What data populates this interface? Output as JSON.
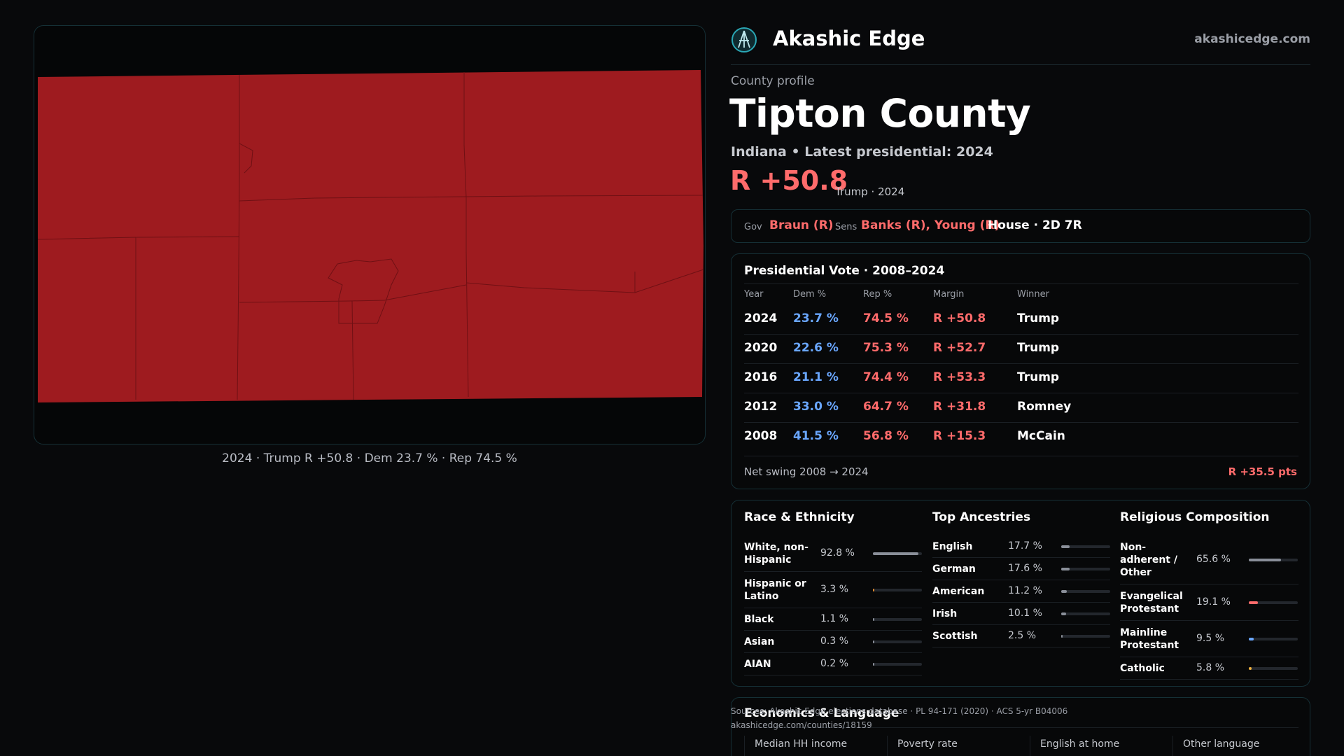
{
  "map": {
    "caption": "2024 · Trump R +50.8 · Dem 23.7 % · Rep 74.5 %",
    "fill_color": "#9e1b1f"
  },
  "header": {
    "brand": "Akashic Edge",
    "site": "akashicedge.com"
  },
  "profile": {
    "label": "County profile",
    "title": "Tipton County",
    "subline": "Indiana • Latest presidential: 2024",
    "margin": "R +50.8",
    "margin_note": "Trump · 2024"
  },
  "officials": {
    "gov_label": "Gov",
    "gov": "Braun (R)",
    "sens_label": "Sens",
    "sens": "Banks (R), Young (R)",
    "house": "House · 2D 7R"
  },
  "presidential": {
    "title": "Presidential Vote · 2008–2024",
    "headers": [
      "Year",
      "Dem %",
      "Rep %",
      "Margin",
      "Winner"
    ],
    "rows": [
      {
        "year": "2024",
        "dem": "23.7 %",
        "rep": "74.5 %",
        "margin": "R +50.8",
        "winner": "Trump"
      },
      {
        "year": "2020",
        "dem": "22.6 %",
        "rep": "75.3 %",
        "margin": "R +52.7",
        "winner": "Trump"
      },
      {
        "year": "2016",
        "dem": "21.1 %",
        "rep": "74.4 %",
        "margin": "R +53.3",
        "winner": "Trump"
      },
      {
        "year": "2012",
        "dem": "33.0 %",
        "rep": "64.7 %",
        "margin": "R +31.8",
        "winner": "Romney"
      },
      {
        "year": "2008",
        "dem": "41.5 %",
        "rep": "56.8 %",
        "margin": "R +15.3",
        "winner": "McCain"
      }
    ],
    "swing_label": "Net swing 2008 → 2024",
    "swing_value": "R +35.5 pts"
  },
  "race": {
    "title": "Race & Ethnicity",
    "items": [
      {
        "label": "White, non-Hispanic",
        "value": "92.8 %",
        "pct": 92.8,
        "color": "#8a8f99"
      },
      {
        "label": "Hispanic or Latino",
        "value": "3.3 %",
        "pct": 3.3,
        "color": "#e08a2e"
      },
      {
        "label": "Black",
        "value": "1.1 %",
        "pct": 1.1,
        "color": "#8a8f99"
      },
      {
        "label": "Asian",
        "value": "0.3 %",
        "pct": 0.3,
        "color": "#8a8f99"
      },
      {
        "label": "AIAN",
        "value": "0.2 %",
        "pct": 0.2,
        "color": "#8a8f99"
      }
    ]
  },
  "ancestry": {
    "title": "Top Ancestries",
    "items": [
      {
        "label": "English",
        "value": "17.7 %",
        "pct": 17.7,
        "color": "#8a8f99"
      },
      {
        "label": "German",
        "value": "17.6 %",
        "pct": 17.6,
        "color": "#8a8f99"
      },
      {
        "label": "American",
        "value": "11.2 %",
        "pct": 11.2,
        "color": "#8a8f99"
      },
      {
        "label": "Irish",
        "value": "10.1 %",
        "pct": 10.1,
        "color": "#8a8f99"
      },
      {
        "label": "Scottish",
        "value": "2.5 %",
        "pct": 2.5,
        "color": "#8a8f99"
      }
    ]
  },
  "religion": {
    "title": "Religious Composition",
    "items": [
      {
        "label": "Non-adherent / Other",
        "value": "65.6 %",
        "pct": 65.6,
        "color": "#8a8f99"
      },
      {
        "label": "Evangelical Protestant",
        "value": "19.1 %",
        "pct": 19.1,
        "color": "#ff6b6b"
      },
      {
        "label": "Mainline Protestant",
        "value": "9.5 %",
        "pct": 9.5,
        "color": "#6aa7ff"
      },
      {
        "label": "Catholic",
        "value": "5.8 %",
        "pct": 5.8,
        "color": "#f2b33d"
      }
    ]
  },
  "economics": {
    "title": "Economics & Language",
    "columns": [
      "Median HH income",
      "Poverty rate",
      "English at home",
      "Other language"
    ]
  },
  "sources": {
    "line1": "Sources: Akashic Edge elections database · PL 94-171 (2020) · ACS 5-yr B04006",
    "line2": "akashicedge.com/counties/18159"
  }
}
